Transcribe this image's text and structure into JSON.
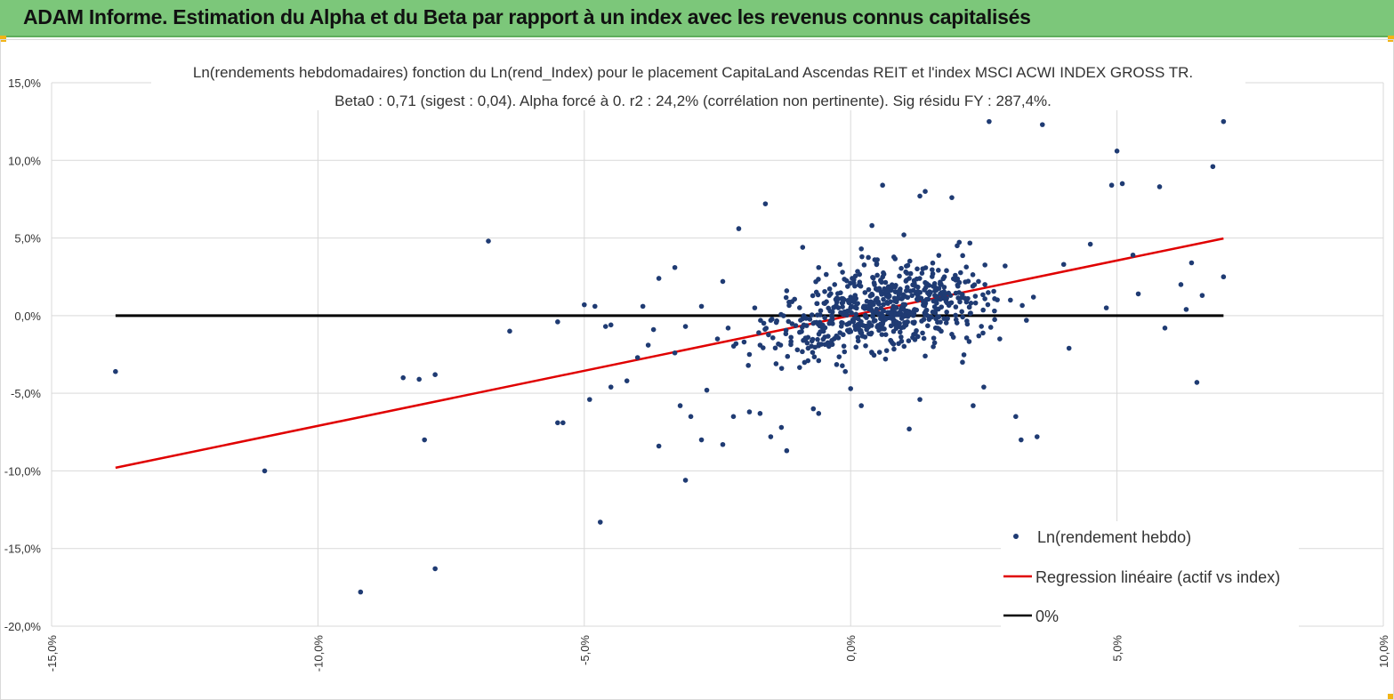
{
  "header": {
    "title": "ADAM Informe. Estimation du Alpha et du Beta par rapport à un index avec les revenus connus capitalisés"
  },
  "chart_data": {
    "type": "scatter",
    "title_line1": "Ln(rendements hebdomadaires) fonction du Ln(rend_Index) pour le placement CapitaLand Ascendas REIT et l'index MSCI ACWI INDEX GROSS TR.",
    "title_line2": "Beta0 : 0,71 (sigest : 0,04). Alpha forcé à 0. r2 : 24,2% (corrélation non pertinente). Sig résidu FY : 287,4%.",
    "xlim": [
      -15,
      10
    ],
    "ylim": [
      -20,
      15
    ],
    "x_ticks": [
      "-15,0%",
      "-10,0%",
      "-5,0%",
      "0,0%",
      "5,0%",
      "10,0%"
    ],
    "y_ticks": [
      "15,0%",
      "10,0%",
      "5,0%",
      "0,0%",
      "-5,0%",
      "-10,0%",
      "-15,0%",
      "-20,0%"
    ],
    "grid": true,
    "legend_position": "bottom-right",
    "colors": {
      "points": "#1f3b73",
      "regression": "#e00000",
      "zero": "#000000",
      "banner": "#7cc77a"
    },
    "legend": [
      {
        "label": "Ln(rendement hebdo)",
        "kind": "marker"
      },
      {
        "label": "Regression linéaire (actif vs index)",
        "kind": "line-red"
      },
      {
        "label": "0%",
        "kind": "line-black"
      }
    ],
    "regression": {
      "beta": 0.71,
      "alpha": 0,
      "x_range": [
        -13.8,
        7.0
      ]
    },
    "zero_line": {
      "y": 0,
      "x_range": [
        -13.8,
        7.0
      ]
    },
    "points": [
      [
        -13.8,
        -3.6
      ],
      [
        -11.0,
        -10.0
      ],
      [
        -9.2,
        -17.8
      ],
      [
        -8.4,
        -4.0
      ],
      [
        -8.1,
        -4.1
      ],
      [
        -8.0,
        -8.0
      ],
      [
        -7.8,
        -16.3
      ],
      [
        -7.8,
        -3.8
      ],
      [
        -6.8,
        4.8
      ],
      [
        -6.4,
        -1.0
      ],
      [
        -5.5,
        -6.9
      ],
      [
        -5.4,
        -6.9
      ],
      [
        -5.5,
        -0.4
      ],
      [
        -5.0,
        0.7
      ],
      [
        -4.9,
        -5.4
      ],
      [
        -4.8,
        0.6
      ],
      [
        -4.7,
        -13.3
      ],
      [
        -4.6,
        -0.7
      ],
      [
        -4.5,
        -4.6
      ],
      [
        -4.5,
        -0.6
      ],
      [
        -4.2,
        -4.2
      ],
      [
        -4.0,
        -2.7
      ],
      [
        -3.9,
        0.6
      ],
      [
        -3.8,
        -1.9
      ],
      [
        -3.7,
        -0.9
      ],
      [
        -3.6,
        -8.4
      ],
      [
        -3.6,
        2.4
      ],
      [
        -3.3,
        3.1
      ],
      [
        -3.3,
        -2.4
      ],
      [
        -3.2,
        -5.8
      ],
      [
        -3.1,
        -0.7
      ],
      [
        -3.1,
        -10.6
      ],
      [
        -3.0,
        -6.5
      ],
      [
        -2.8,
        0.6
      ],
      [
        -2.8,
        -8.0
      ],
      [
        -2.7,
        -4.8
      ],
      [
        -2.5,
        -1.5
      ],
      [
        -2.4,
        2.2
      ],
      [
        -2.4,
        -8.3
      ],
      [
        -2.2,
        -6.5
      ],
      [
        -2.1,
        5.6
      ],
      [
        -2.0,
        -1.7
      ],
      [
        -1.9,
        -2.5
      ],
      [
        -1.9,
        -6.2
      ],
      [
        -1.8,
        0.5
      ],
      [
        -1.7,
        -6.3
      ],
      [
        -1.6,
        7.2
      ],
      [
        -1.5,
        -7.8
      ],
      [
        -1.4,
        -3.1
      ],
      [
        -1.3,
        -7.2
      ],
      [
        -1.2,
        -8.7
      ],
      [
        -1.0,
        -2.2
      ],
      [
        -0.9,
        4.4
      ],
      [
        -0.7,
        -6.0
      ],
      [
        -0.6,
        3.1
      ],
      [
        -0.6,
        -6.3
      ],
      [
        -0.4,
        -0.5
      ],
      [
        -0.2,
        3.3
      ],
      [
        -0.1,
        -3.6
      ],
      [
        0.0,
        -4.7
      ],
      [
        0.2,
        4.3
      ],
      [
        0.2,
        -5.8
      ],
      [
        0.4,
        5.8
      ],
      [
        0.5,
        2.6
      ],
      [
        0.6,
        8.4
      ],
      [
        0.9,
        -0.5
      ],
      [
        1.0,
        5.2
      ],
      [
        1.1,
        -7.3
      ],
      [
        1.3,
        7.7
      ],
      [
        1.3,
        -5.4
      ],
      [
        1.4,
        8.0
      ],
      [
        1.5,
        1.5
      ],
      [
        1.7,
        2.0
      ],
      [
        1.9,
        7.6
      ],
      [
        2.0,
        4.5
      ],
      [
        2.1,
        -3.0
      ],
      [
        2.3,
        -5.8
      ],
      [
        2.5,
        -4.6
      ],
      [
        2.6,
        12.5
      ],
      [
        2.9,
        3.2
      ],
      [
        3.1,
        -6.5
      ],
      [
        3.2,
        -8.0
      ],
      [
        3.5,
        -7.8
      ],
      [
        3.6,
        12.3
      ],
      [
        4.0,
        3.3
      ],
      [
        4.1,
        -2.1
      ],
      [
        4.5,
        4.6
      ],
      [
        4.8,
        0.5
      ],
      [
        4.9,
        8.4
      ],
      [
        5.0,
        10.6
      ],
      [
        5.1,
        8.5
      ],
      [
        5.3,
        3.9
      ],
      [
        5.4,
        1.4
      ],
      [
        5.8,
        8.3
      ],
      [
        5.9,
        -0.8
      ],
      [
        6.2,
        2.0
      ],
      [
        6.3,
        0.4
      ],
      [
        6.4,
        3.4
      ],
      [
        6.5,
        -4.3
      ],
      [
        6.6,
        1.3
      ],
      [
        6.8,
        9.6
      ],
      [
        7.0,
        12.5
      ],
      [
        7.0,
        2.5
      ],
      [
        3.3,
        -0.3
      ],
      [
        -0.5,
        0.8
      ],
      [
        0.1,
        1.1
      ],
      [
        0.3,
        -0.9
      ],
      [
        0.7,
        1.7
      ],
      [
        -0.8,
        -1.4
      ],
      [
        1.2,
        0.4
      ],
      [
        -1.1,
        0.9
      ],
      [
        0.9,
        -1.8
      ],
      [
        1.6,
        -0.2
      ],
      [
        -0.3,
        2.0
      ],
      [
        2.2,
        1.1
      ],
      [
        -1.5,
        -0.3
      ],
      [
        0.4,
        -2.4
      ],
      [
        1.8,
        2.9
      ],
      [
        -0.6,
        -2.9
      ],
      [
        2.7,
        0.3
      ],
      [
        -2.3,
        -0.8
      ],
      [
        0.5,
        3.6
      ],
      [
        1.4,
        -2.6
      ],
      [
        -1.2,
        1.6
      ],
      [
        2.4,
        2.2
      ],
      [
        3.0,
        1.0
      ],
      [
        -0.2,
        -1.1
      ],
      [
        0.8,
        0.2
      ],
      [
        1.1,
        2.4
      ],
      [
        -0.9,
        -0.2
      ],
      [
        1.9,
        -1.2
      ],
      [
        0.0,
        0.5
      ],
      [
        -1.7,
        -1.9
      ],
      [
        2.8,
        -1.5
      ],
      [
        0.6,
        -0.5
      ],
      [
        -0.4,
        1.3
      ]
    ]
  }
}
